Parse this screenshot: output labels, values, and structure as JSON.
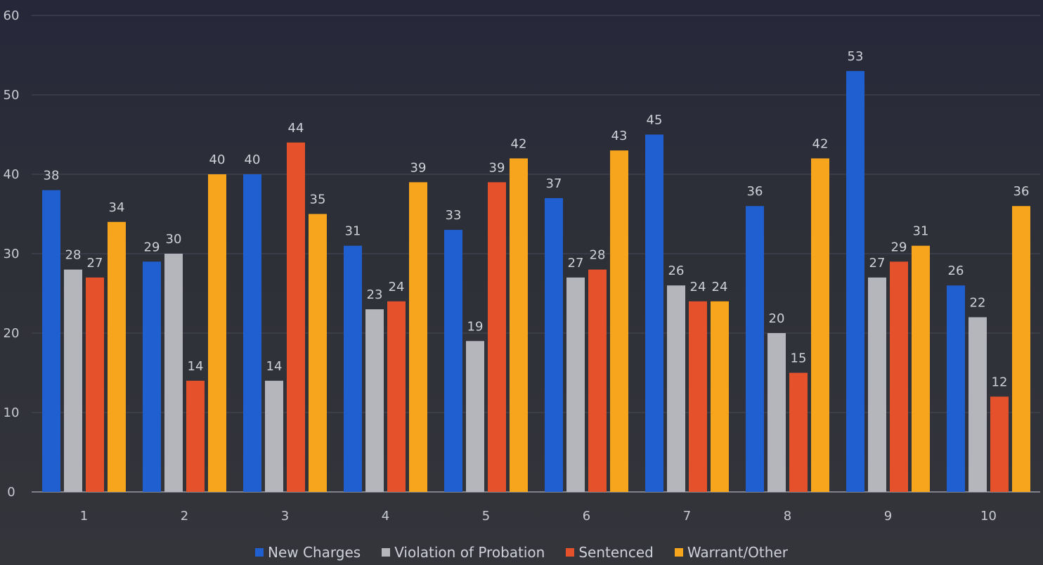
{
  "chart_data": {
    "type": "bar",
    "categories": [
      "1",
      "2",
      "3",
      "4",
      "5",
      "6",
      "7",
      "8",
      "9",
      "10"
    ],
    "series": [
      {
        "name": "New Charges",
        "color": "#1f5fd0",
        "values": [
          38,
          29,
          40,
          31,
          33,
          37,
          45,
          36,
          53,
          26
        ]
      },
      {
        "name": "Violation of Probation",
        "color": "#b4b6bb",
        "values": [
          28,
          30,
          14,
          23,
          19,
          27,
          26,
          20,
          27,
          22
        ]
      },
      {
        "name": "Sentenced",
        "color": "#e4512a",
        "values": [
          27,
          14,
          44,
          24,
          39,
          28,
          24,
          15,
          29,
          12
        ]
      },
      {
        "name": "Warrant/Other",
        "color": "#f7a51d",
        "values": [
          34,
          40,
          35,
          39,
          42,
          43,
          24,
          42,
          31,
          36
        ]
      }
    ],
    "data_labels": {
      "New Charges": [
        "38",
        "29",
        "40",
        "31",
        "33",
        "37",
        "45",
        "36",
        "53",
        "26"
      ],
      "Violation of Probation": [
        "28",
        "30",
        "14",
        "23",
        "19",
        "27",
        "26",
        "20",
        "27",
        "22"
      ],
      "Sentenced": [
        "27",
        "14",
        "44",
        "24",
        "39",
        "28",
        "24",
        "15",
        "29",
        "12"
      ],
      "Warrant/Other": [
        "34",
        "40",
        "35",
        "39",
        "42",
        "43",
        "24",
        "42",
        "31",
        "36"
      ]
    },
    "y_ticks": [
      "0",
      "10",
      "20",
      "30",
      "40",
      "50",
      "60"
    ],
    "ylim": [
      0,
      60
    ],
    "grid": true,
    "legend_position": "bottom",
    "title": "",
    "xlabel": "",
    "ylabel": ""
  }
}
